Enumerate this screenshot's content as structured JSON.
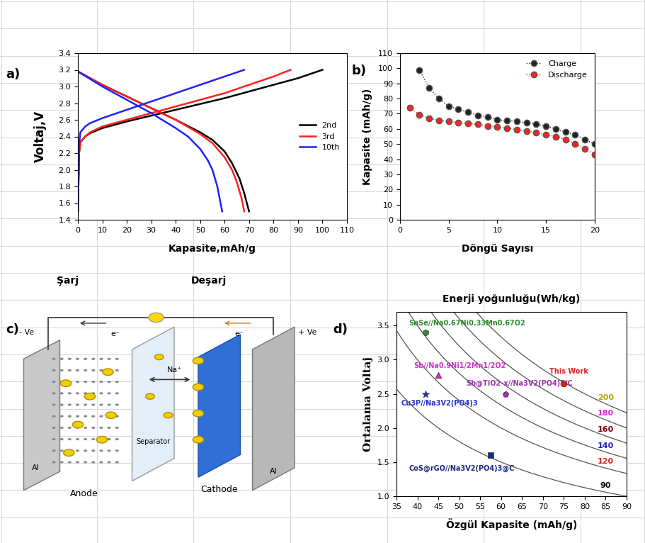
{
  "chart_data": [
    {
      "panel": "a)",
      "type": "line",
      "xlabel": "Kapasite,mAh/g",
      "ylabel": "Voltaj,V",
      "annotations": [
        "Şarj",
        "Deşarj"
      ],
      "xlim": [
        0,
        110
      ],
      "xticks": [
        0,
        10,
        20,
        30,
        40,
        50,
        60,
        70,
        80,
        90,
        100,
        110
      ],
      "ylim": [
        1.4,
        3.4
      ],
      "yticks": [
        1.4,
        1.6,
        1.8,
        2.0,
        2.2,
        2.4,
        2.6,
        2.8,
        3.0,
        3.2,
        3.4
      ],
      "legend": "center right",
      "series": [
        {
          "name": "2nd",
          "color": "#000000",
          "x": [
            0,
            0.5,
            1,
            3,
            5,
            10,
            20,
            30,
            40,
            50,
            60,
            70,
            80,
            90,
            100,
            null,
            0,
            10,
            20,
            30,
            40,
            50,
            55,
            60,
            63,
            66,
            68,
            70
          ],
          "values": [
            1.5,
            2.2,
            2.33,
            2.4,
            2.44,
            2.5,
            2.58,
            2.65,
            2.72,
            2.79,
            2.86,
            2.94,
            3.02,
            3.1,
            3.2,
            null,
            3.18,
            3.02,
            2.88,
            2.74,
            2.6,
            2.45,
            2.36,
            2.22,
            2.08,
            1.9,
            1.72,
            1.5
          ]
        },
        {
          "name": "3rd",
          "color": "#ff2020",
          "x": [
            0,
            0.5,
            1,
            3,
            5,
            10,
            20,
            30,
            40,
            50,
            60,
            70,
            80,
            87,
            null,
            0,
            10,
            20,
            30,
            40,
            50,
            55,
            60,
            63,
            65,
            67,
            68
          ],
          "values": [
            1.5,
            2.2,
            2.33,
            2.4,
            2.45,
            2.52,
            2.6,
            2.68,
            2.76,
            2.84,
            2.92,
            3.02,
            3.12,
            3.2,
            null,
            3.18,
            3.02,
            2.88,
            2.74,
            2.6,
            2.43,
            2.32,
            2.15,
            2.0,
            1.85,
            1.65,
            1.5
          ]
        },
        {
          "name": "10th",
          "color": "#2020ff",
          "x": [
            0,
            0.5,
            1,
            3,
            5,
            10,
            20,
            30,
            40,
            50,
            60,
            68,
            null,
            0,
            10,
            20,
            30,
            40,
            45,
            50,
            53,
            55,
            57,
            58,
            59
          ],
          "values": [
            1.5,
            2.3,
            2.45,
            2.52,
            2.56,
            2.62,
            2.72,
            2.82,
            2.92,
            3.02,
            3.12,
            3.2,
            null,
            3.18,
            3.0,
            2.84,
            2.68,
            2.5,
            2.4,
            2.25,
            2.12,
            2.0,
            1.8,
            1.65,
            1.5
          ]
        }
      ]
    },
    {
      "panel": "b)",
      "type": "line",
      "xlabel": "Döngü Sayısı",
      "ylabel": "Kapasite (mAh/g)",
      "xlim": [
        0,
        20
      ],
      "xticks": [
        0,
        5,
        10,
        15,
        20
      ],
      "ylim": [
        0,
        110
      ],
      "yticks": [
        0,
        10,
        20,
        30,
        40,
        50,
        60,
        70,
        80,
        90,
        100,
        110
      ],
      "legend": "upper right",
      "marker": "circle",
      "line_style": "dotted",
      "series": [
        {
          "name": "Charge",
          "color": "#222222",
          "x": [
            2,
            3,
            4,
            5,
            6,
            7,
            8,
            9,
            10,
            11,
            12,
            13,
            14,
            15,
            16,
            17,
            18,
            19,
            20
          ],
          "values": [
            99,
            87,
            80,
            75,
            73,
            71,
            69,
            68,
            66,
            65.5,
            65,
            64,
            63,
            62,
            60,
            58,
            56,
            53,
            50
          ]
        },
        {
          "name": "Discharge",
          "color": "#ff2020",
          "x": [
            1,
            2,
            3,
            4,
            5,
            6,
            7,
            8,
            9,
            10,
            11,
            12,
            13,
            14,
            15,
            16,
            17,
            18,
            19,
            20
          ],
          "values": [
            74,
            69.5,
            67,
            65.5,
            65,
            64,
            63.5,
            63,
            62,
            61.5,
            60.5,
            59.5,
            58.5,
            57.5,
            56,
            55,
            53,
            50,
            47,
            43
          ]
        }
      ]
    },
    {
      "panel": "d)",
      "type": "scatter",
      "title": "Enerji yoğunluğu(Wh/kg)",
      "xlabel": "Özgül Kapasite (mAh/g)",
      "ylabel": "Ortalama Voltaj",
      "xlim": [
        35,
        90
      ],
      "xticks": [
        35,
        40,
        45,
        50,
        55,
        60,
        65,
        70,
        75,
        80,
        85,
        90
      ],
      "ylim": [
        1.0,
        3.7
      ],
      "yticks": [
        1.0,
        1.5,
        2.0,
        2.5,
        3.0,
        3.5
      ],
      "energy_levels": [
        {
          "value": 200,
          "color": "#b5a800"
        },
        {
          "value": 180,
          "color": "#e020e0"
        },
        {
          "value": 160,
          "color": "#800000"
        },
        {
          "value": 140,
          "color": "#2020c0"
        },
        {
          "value": 120,
          "color": "#e02020"
        },
        {
          "value": 90,
          "color": "#000000"
        }
      ],
      "series": [
        {
          "name": "SnSe//Na0.67Ni0.33Mn0.67O2",
          "color": "#2e8b2e",
          "marker": "hexagon",
          "x": [
            42
          ],
          "values": [
            3.4
          ]
        },
        {
          "name": "Sb//Na0.9Ni1/2Mn1/2O2",
          "color": "#cc33cc",
          "marker": "triangle",
          "x": [
            45
          ],
          "values": [
            2.78
          ]
        },
        {
          "name": "Sb@TiO2-x//Na3V2(PO4)3/C",
          "color": "#9933aa",
          "marker": "pentagon",
          "x": [
            61
          ],
          "values": [
            2.5
          ]
        },
        {
          "name": "Cu3P//Na3V2(PO4)3",
          "color": "#2233cc",
          "marker": "star",
          "x": [
            42
          ],
          "values": [
            2.5
          ]
        },
        {
          "name": "CoS@rGO//Na3V2(PO4)3@C",
          "color": "#1a2a80",
          "marker": "square",
          "x": [
            57.5
          ],
          "values": [
            1.6
          ]
        },
        {
          "name": "This Work",
          "color": "#e02020",
          "marker": "circle",
          "x": [
            75
          ],
          "values": [
            2.65
          ]
        }
      ]
    }
  ],
  "diagram": {
    "panel": "c)",
    "labels": {
      "anode_terminal": "- Ve",
      "cathode_terminal": "+ Ve",
      "electron_left": "e⁻",
      "electron_right": "e⁻",
      "ion": "Na⁺",
      "separator": "Separator",
      "anode": "Anode",
      "cathode": "Cathode",
      "collector_left": "Al",
      "collector_right": "Al"
    }
  }
}
